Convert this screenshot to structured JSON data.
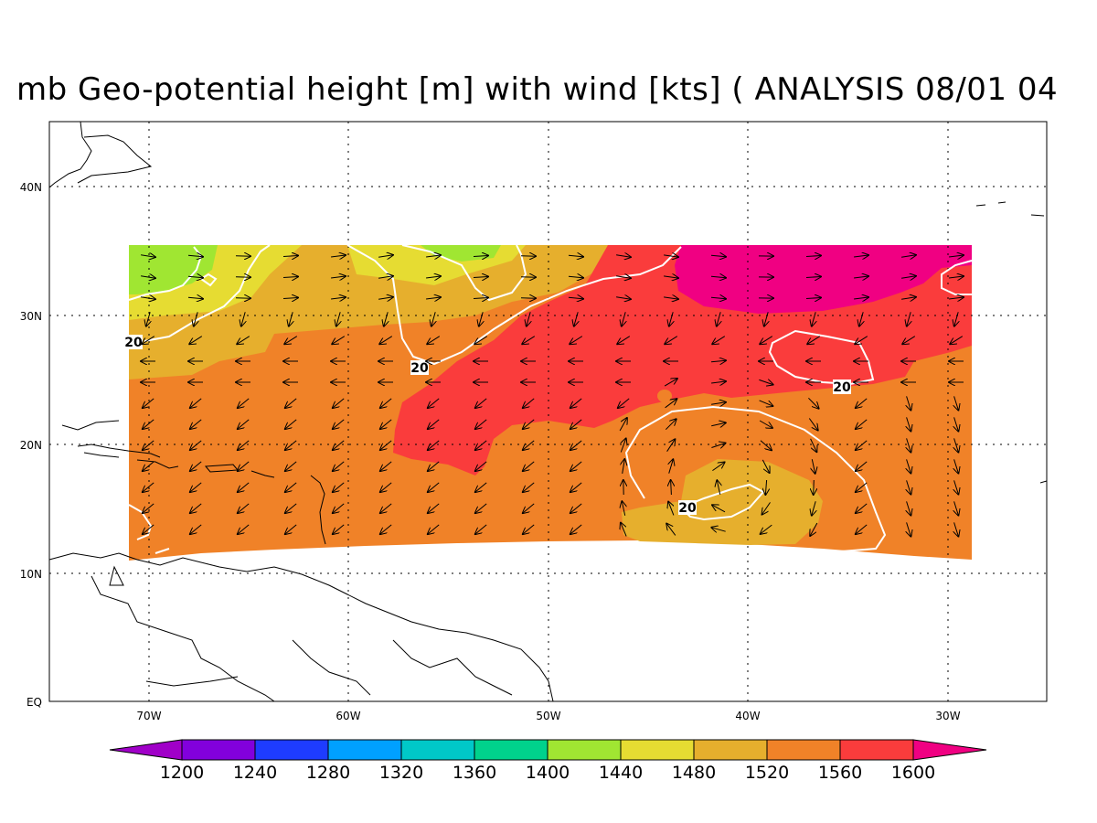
{
  "title": "mb Geo-potential height [m] with wind [kts] ( ANALYSIS 08/01 04",
  "lat_labels": [
    "40N",
    "30N",
    "20N",
    "10N",
    "EQ"
  ],
  "lon_labels": [
    "70W",
    "60W",
    "50W",
    "40W",
    "30W"
  ],
  "contour_label": "20",
  "colorbar": {
    "labels": [
      "1200",
      "1240",
      "1280",
      "1320",
      "1360",
      "1400",
      "1440",
      "1480",
      "1520",
      "1560",
      "1600"
    ],
    "colors": [
      "#a000c8",
      "#8200dc",
      "#1e3cff",
      "#00a0ff",
      "#00c8c8",
      "#00d28c",
      "#a0e632",
      "#e6dc32",
      "#e6af2d",
      "#f08228",
      "#fa3c3c",
      "#f00082"
    ]
  },
  "colors": {
    "shade_1440_1480": "#a0e632",
    "shade_1480_1520": "#e6dc32",
    "shade_1520_1560": "#e6af2d",
    "shade_1560_1600": "#f08228",
    "shade_1600": "#fa3c3c",
    "shade_above": "#f00082",
    "contour": "#ffffff"
  }
}
